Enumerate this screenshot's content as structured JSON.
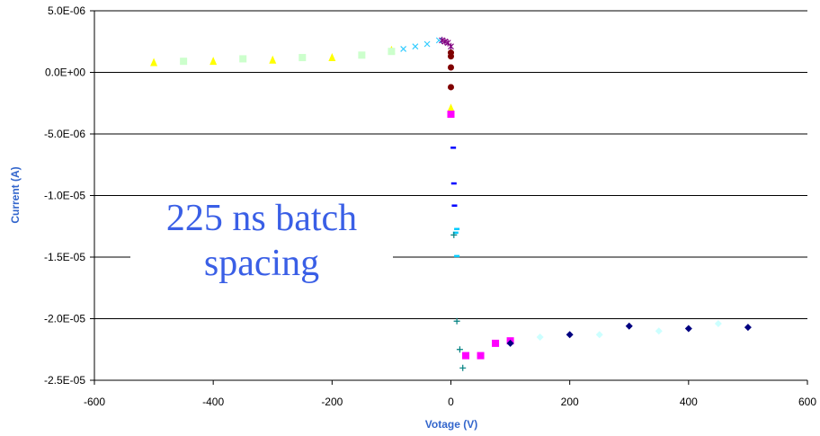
{
  "chart_data": {
    "type": "scatter",
    "title": "",
    "xlabel": "Votage (V)",
    "ylabel": "Current (A)",
    "xlim": [
      -600,
      600
    ],
    "ylim": [
      -2.5e-05,
      5e-06
    ],
    "xticks": [
      -600,
      -400,
      -200,
      0,
      200,
      400,
      600
    ],
    "xtick_labels": [
      "-600",
      "-400",
      "-200",
      "0",
      "200",
      "400",
      "600"
    ],
    "yticks": [
      5e-06,
      0,
      -5e-06,
      -1e-05,
      -1.5e-05,
      -2e-05,
      -2.5e-05
    ],
    "ytick_labels": [
      "5.0E-06",
      "0.0E+00",
      "-5.0E-06",
      "-1.0E-05",
      "-1.5E-05",
      "-2.0E-05",
      "-2.5E-05"
    ],
    "grid": "horizontal",
    "legend": "none",
    "annotation": [
      "225 ns batch",
      "spacing"
    ],
    "series": [
      {
        "marker": "triangle",
        "color": "#ffff00",
        "x": [
          -500,
          -400,
          -300,
          -200,
          -100,
          0
        ],
        "y": [
          8e-07,
          9e-07,
          1e-06,
          1.2e-06,
          1.8e-06,
          -2.9e-06
        ]
      },
      {
        "marker": "square",
        "color": "#ccffcc",
        "x": [
          -450,
          -350,
          -250,
          -150,
          -100
        ],
        "y": [
          9e-07,
          1.1e-06,
          1.2e-06,
          1.4e-06,
          1.7e-06
        ]
      },
      {
        "marker": "x",
        "color": "#33ccff",
        "x": [
          -80,
          -60,
          -40,
          -20
        ],
        "y": [
          1.9e-06,
          2.1e-06,
          2.3e-06,
          2.6e-06
        ]
      },
      {
        "marker": "star",
        "color": "#800080",
        "x": [
          -15,
          -10,
          -5,
          0
        ],
        "y": [
          2.6e-06,
          2.5e-06,
          2.4e-06,
          2.1e-06
        ]
      },
      {
        "marker": "circle",
        "color": "#800000",
        "x": [
          0,
          0,
          0,
          0
        ],
        "y": [
          1.6e-06,
          1.3e-06,
          4e-07,
          -1.2e-06
        ]
      },
      {
        "marker": "square",
        "color": "#ff00ff",
        "x": [
          0,
          25,
          50,
          75,
          100
        ],
        "y": [
          -3.4e-06,
          -2.3e-05,
          -2.3e-05,
          -2.2e-05,
          -2.18e-05
        ]
      },
      {
        "marker": "dash",
        "color": "#0000ff",
        "x": [
          4,
          5,
          6
        ],
        "y": [
          -6.1e-06,
          -9e-06,
          -1.08e-05
        ]
      },
      {
        "marker": "dash",
        "color": "#00ccff",
        "x": [
          10,
          8,
          10
        ],
        "y": [
          -1.27e-05,
          -1.3e-05,
          -1.49e-05
        ]
      },
      {
        "marker": "plus",
        "color": "#008080",
        "x": [
          5,
          10,
          15,
          20
        ],
        "y": [
          -1.32e-05,
          -2.02e-05,
          -2.25e-05,
          -2.4e-05
        ]
      },
      {
        "marker": "diamond",
        "color": "#000080",
        "x": [
          100,
          200,
          300,
          400,
          500
        ],
        "y": [
          -2.2e-05,
          -2.13e-05,
          -2.06e-05,
          -2.08e-05,
          -2.07e-05
        ]
      },
      {
        "marker": "diamond",
        "color": "#ccffff",
        "x": [
          150,
          250,
          350,
          450
        ],
        "y": [
          -2.15e-05,
          -2.13e-05,
          -2.1e-05,
          -2.04e-05
        ]
      }
    ]
  }
}
